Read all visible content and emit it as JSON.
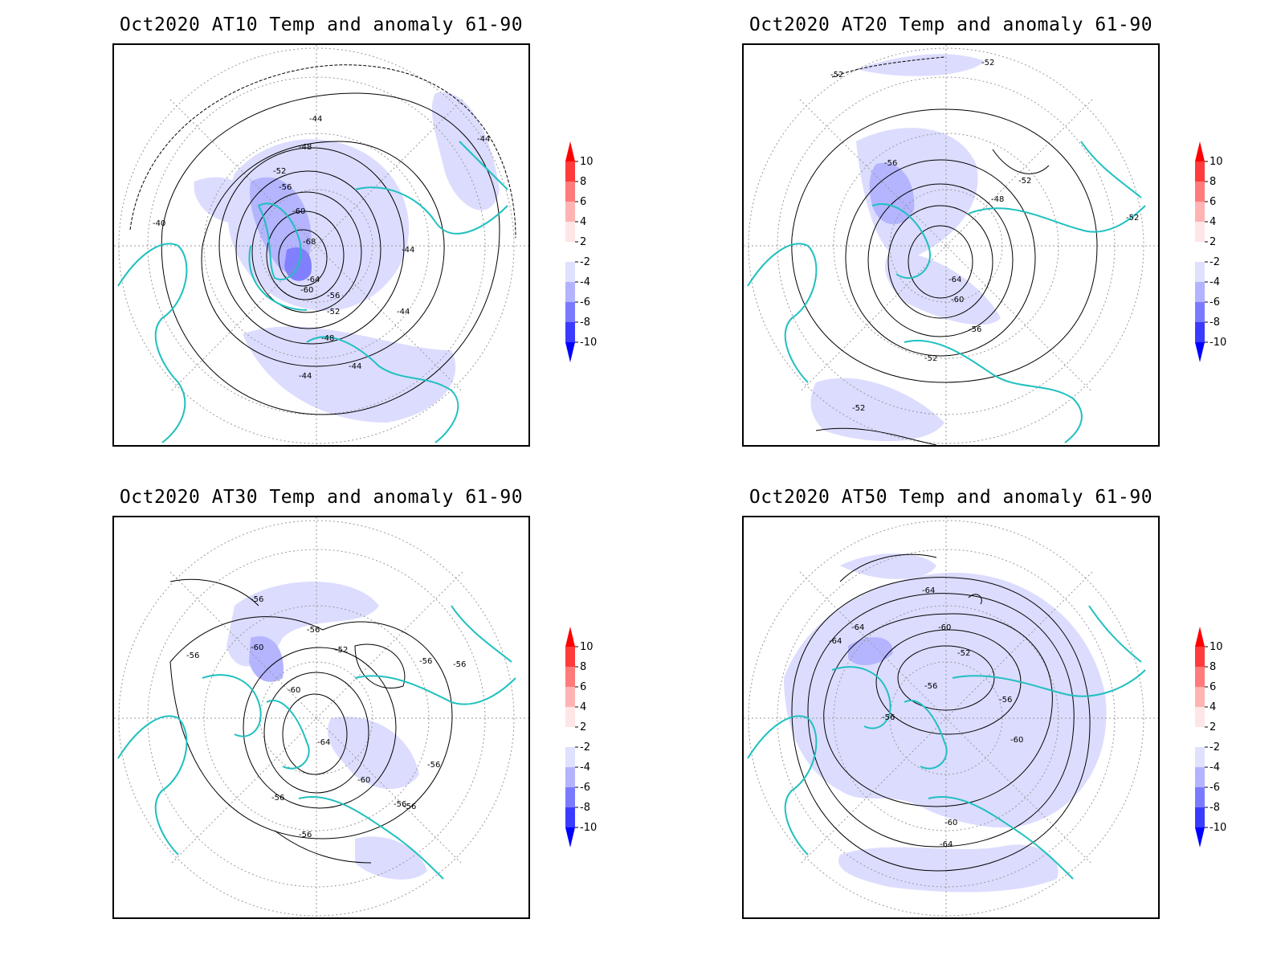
{
  "panels": [
    {
      "title": "Oct2020 AT10 Temp and anomaly 61-90",
      "contour_labels": [
        "-44",
        "-48",
        "-52",
        "-56",
        "-60",
        "-68",
        "-64",
        "-60",
        "-56",
        "-52",
        "-48",
        "-44",
        "-44",
        "-40",
        "-44",
        "-44",
        "-44"
      ]
    },
    {
      "title": "Oct2020 AT20 Temp and anomaly 61-90",
      "contour_labels": [
        "-52",
        "-52",
        "-56",
        "-52",
        "-48",
        "-52",
        "-64",
        "-60",
        "-56",
        "-52",
        "-52"
      ]
    },
    {
      "title": "Oct2020 AT30 Temp and anomaly 61-90",
      "contour_labels": [
        "-56",
        "-56",
        "-60",
        "-52",
        "-56",
        "-56",
        "-56",
        "-60",
        "-64",
        "-60",
        "-56",
        "-56",
        "-56",
        "-56",
        "-56"
      ]
    },
    {
      "title": "Oct2020 AT50 Temp and anomaly 61-90",
      "contour_labels": [
        "-64",
        "-64",
        "-64",
        "-60",
        "-52",
        "-56",
        "-56",
        "-56",
        "-60",
        "-60",
        "-64"
      ]
    }
  ],
  "colorbar": {
    "labels": [
      "10",
      "8",
      "6",
      "4",
      "2",
      "-2",
      "-4",
      "-6",
      "-8",
      "-10"
    ],
    "colors": [
      "#ff0000",
      "#ff3b3b",
      "#ff7a7a",
      "#ffb3b3",
      "#ffe6e6",
      "#ffffff",
      "#e0e0ff",
      "#b3b3ff",
      "#7a7aff",
      "#3b3bff",
      "#0000ff"
    ]
  },
  "colors": {
    "coastline": "#20c0c0",
    "anomaly_light": "#dcdcff",
    "anomaly_mid": "#b4b4ff",
    "anomaly_dark": "#8080ff",
    "contour": "#000000"
  }
}
